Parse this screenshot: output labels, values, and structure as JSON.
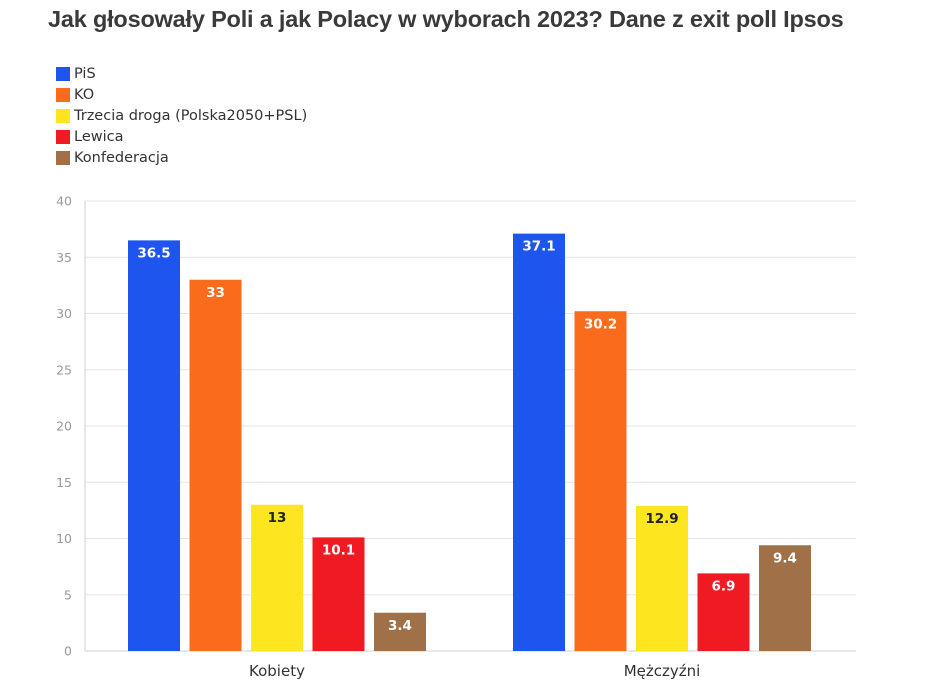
{
  "chart_data": {
    "type": "bar",
    "title": "Jak głosowały Poli a jak Polacy w wyborach 2023? Dane z exit poll Ipsos",
    "categories": [
      "Kobiety",
      "Mężczyźni"
    ],
    "series": [
      {
        "name": "PiS",
        "color": "#1f55ef",
        "label_color": "#ffffff",
        "values": [
          36.5,
          37.1
        ],
        "labels": [
          "36.5",
          "37.1"
        ]
      },
      {
        "name": "KO",
        "color": "#fa6b1c",
        "label_color": "#ffffff",
        "values": [
          33,
          30.2
        ],
        "labels": [
          "33",
          "30.2"
        ]
      },
      {
        "name": "Trzecia droga (Polska2050+PSL)",
        "color": "#fde51f",
        "label_color": "#222222",
        "values": [
          13,
          12.9
        ],
        "labels": [
          "13",
          "12.9"
        ]
      },
      {
        "name": "Lewica",
        "color": "#ef1a22",
        "label_color": "#ffffff",
        "values": [
          10.1,
          6.9
        ],
        "labels": [
          "10.1",
          "6.9"
        ]
      },
      {
        "name": "Konfederacja",
        "color": "#a07148",
        "label_color": "#ffffff",
        "values": [
          3.4,
          9.4
        ],
        "labels": [
          "3.4",
          "9.4"
        ]
      }
    ],
    "ylim": [
      0,
      40
    ],
    "yticks": [
      "0",
      "5",
      "10",
      "15",
      "20",
      "25",
      "30",
      "35",
      "40"
    ],
    "xlabel": "",
    "ylabel": "",
    "grid": true,
    "legend": "top-left"
  }
}
